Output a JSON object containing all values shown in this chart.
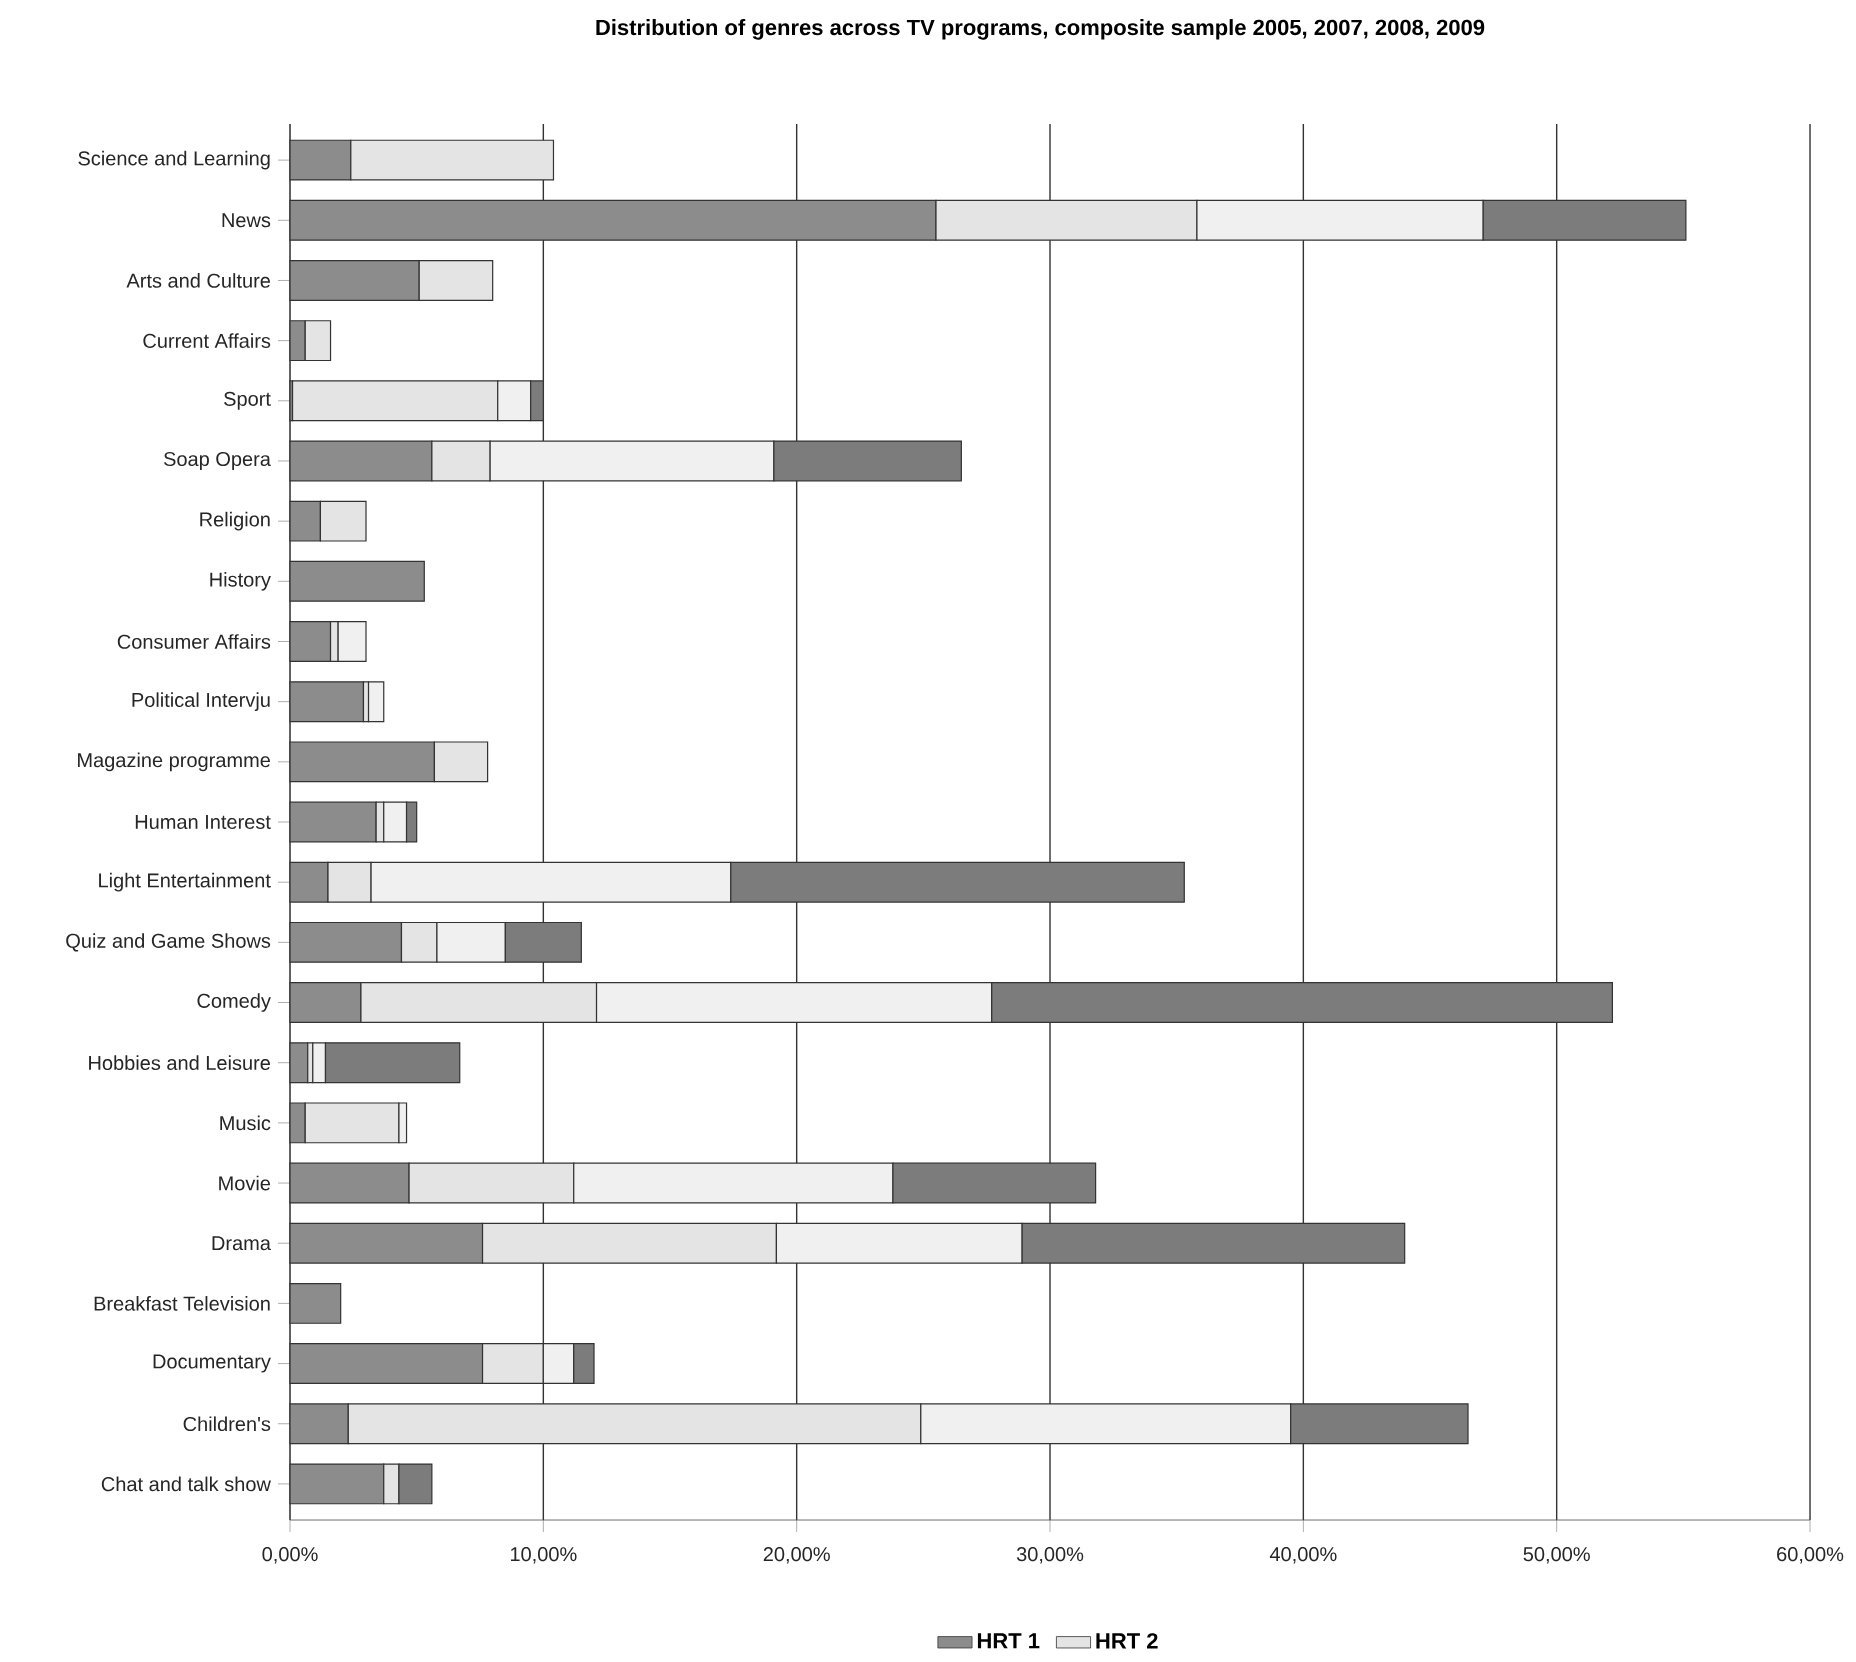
{
  "chart_data": {
    "type": "bar",
    "orientation": "horizontal",
    "stacked": true,
    "title": "Distribution of genres across TV programs, composite sample 2005, 2007, 2008, 2009",
    "categories": [
      "Science and Learning",
      "News",
      "Arts and Culture",
      "Current Affairs",
      "Sport",
      "Soap Opera",
      "Religion",
      "History",
      "Consumer Affairs",
      "Political Intervju",
      "Magazine programme",
      "Human Interest",
      "Light Entertainment",
      "Quiz and Game Shows",
      "Comedy",
      "Hobbies and Leisure",
      "Music",
      "Movie",
      "Drama",
      "Breakfast Television",
      "Documentary",
      "Children's",
      "Chat and talk show"
    ],
    "series": [
      {
        "name": "HRT 1",
        "color": "#8c8c8c",
        "values": [
          2.4,
          25.5,
          5.1,
          0.6,
          0.1,
          5.6,
          1.2,
          5.3,
          1.6,
          2.9,
          5.7,
          3.4,
          1.5,
          4.4,
          2.8,
          0.7,
          0.6,
          4.7,
          7.6,
          2.0,
          7.6,
          2.3,
          3.7
        ]
      },
      {
        "name": "HRT 2",
        "color": "#e4e4e4",
        "values": [
          8.0,
          10.3,
          2.9,
          1.0,
          8.1,
          2.3,
          1.8,
          null,
          0.3,
          0.2,
          2.1,
          0.3,
          1.7,
          1.4,
          9.3,
          0.2,
          3.7,
          6.5,
          11.6,
          null,
          2.4,
          22.6,
          0.6
        ]
      },
      {
        "color": "#f0f0f0",
        "values": [
          null,
          11.3,
          null,
          null,
          1.3,
          11.2,
          null,
          null,
          1.1,
          0.6,
          null,
          0.9,
          14.2,
          2.7,
          15.6,
          0.5,
          0.3,
          12.6,
          9.7,
          null,
          1.2,
          14.6,
          null
        ]
      },
      {
        "color": "#7c7c7c",
        "values": [
          null,
          8.0,
          null,
          null,
          0.5,
          7.4,
          null,
          null,
          null,
          null,
          null,
          0.4,
          17.9,
          3.0,
          24.5,
          5.3,
          null,
          8.0,
          15.1,
          null,
          0.8,
          7.0,
          1.3
        ]
      }
    ],
    "xlim": [
      0,
      60
    ],
    "xticks": [
      {
        "value": 0,
        "label": "0,00%"
      },
      {
        "value": 10,
        "label": "10,00%"
      },
      {
        "value": 20,
        "label": "20,00%"
      },
      {
        "value": 30,
        "label": "30,00%"
      },
      {
        "value": 40,
        "label": "40,00%"
      },
      {
        "value": 50,
        "label": "50,00%"
      },
      {
        "value": 60,
        "label": "60,00%"
      }
    ],
    "grid": "x",
    "legend": "bottom"
  }
}
